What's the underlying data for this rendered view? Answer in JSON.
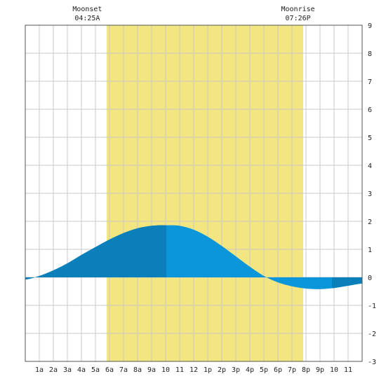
{
  "colors": {
    "background": "#ffffff",
    "daylight": "#f3e680",
    "grid": "#c8c8c8",
    "frame": "#555555",
    "tide_light": "#0a96d8",
    "tide_dark": "#0a7fba",
    "text": "#222222"
  },
  "annotations": [
    {
      "label": "Moonset",
      "time": "04:25A",
      "x": 4.42
    },
    {
      "label": "Moonrise",
      "time": "07:26P",
      "x": 19.43
    }
  ],
  "chart_data": {
    "type": "area",
    "title": "",
    "xlabel": "",
    "ylabel": "",
    "xlim": [
      0,
      24
    ],
    "ylim": [
      -3,
      9
    ],
    "x_tick_labels": [
      "1a",
      "2a",
      "3a",
      "4a",
      "5a",
      "6a",
      "7a",
      "8a",
      "9a",
      "10",
      "11",
      "12",
      "1p",
      "2p",
      "3p",
      "4p",
      "5p",
      "6p",
      "7p",
      "8p",
      "9p",
      "10",
      "11"
    ],
    "y_ticks": [
      -3,
      -2,
      -1,
      0,
      1,
      2,
      3,
      4,
      5,
      6,
      7,
      8,
      9
    ],
    "grid": true,
    "daylight": {
      "start": 5.8,
      "end": 19.8
    },
    "shading_dark_ranges": [
      [
        0,
        10.05
      ],
      [
        21.85,
        24
      ]
    ],
    "series": [
      {
        "values": [
          {
            "x": 0,
            "y": -0.08
          },
          {
            "x": 1,
            "y": 0.05
          },
          {
            "x": 2,
            "y": 0.25
          },
          {
            "x": 3,
            "y": 0.5
          },
          {
            "x": 4,
            "y": 0.8
          },
          {
            "x": 5,
            "y": 1.08
          },
          {
            "x": 6,
            "y": 1.35
          },
          {
            "x": 7,
            "y": 1.58
          },
          {
            "x": 8,
            "y": 1.75
          },
          {
            "x": 9,
            "y": 1.84
          },
          {
            "x": 10,
            "y": 1.86
          },
          {
            "x": 11,
            "y": 1.84
          },
          {
            "x": 12,
            "y": 1.7
          },
          {
            "x": 13,
            "y": 1.45
          },
          {
            "x": 14,
            "y": 1.12
          },
          {
            "x": 15,
            "y": 0.75
          },
          {
            "x": 16,
            "y": 0.38
          },
          {
            "x": 17,
            "y": 0.05
          },
          {
            "x": 18,
            "y": -0.18
          },
          {
            "x": 19,
            "y": -0.32
          },
          {
            "x": 20,
            "y": -0.4
          },
          {
            "x": 21,
            "y": -0.42
          },
          {
            "x": 22,
            "y": -0.38
          },
          {
            "x": 23,
            "y": -0.3
          },
          {
            "x": 24,
            "y": -0.22
          }
        ]
      }
    ]
  }
}
